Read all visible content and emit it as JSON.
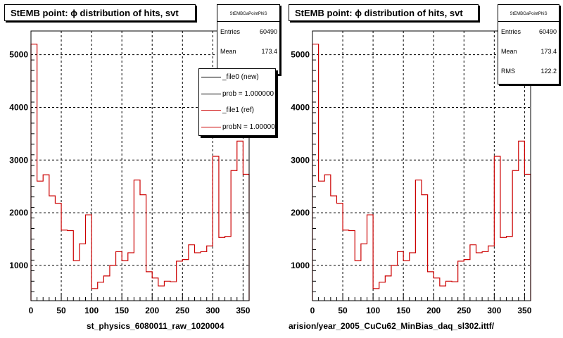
{
  "colors": {
    "ref_hist": "#cc0000",
    "new_hist": "#000000",
    "grid": "#000000"
  },
  "panels": [
    {
      "title": "StEMB point:  ϕ distribution of hits, svt",
      "stats": {
        "name": "StEMBGaPointPhiS",
        "rows": [
          {
            "label": "Entries",
            "value": "60490"
          },
          {
            "label": "Mean",
            "value": "173.4"
          }
        ]
      },
      "legend": [
        {
          "label": "_file0 (new)",
          "color": "#000000"
        },
        {
          "label": "prob = 1.000000",
          "color": "#000000"
        },
        {
          "label": "_file1 (ref)",
          "color": "#cc0000"
        },
        {
          "label": "probN = 1.000000",
          "color": "#cc0000"
        }
      ],
      "bottom_label": "st_physics_6080011_raw_1020004"
    },
    {
      "title": "StEMB point:  ϕ distribution of hits, svt",
      "stats": {
        "name": "StEMBGaPointPhiS",
        "rows": [
          {
            "label": "Entries",
            "value": "60490"
          },
          {
            "label": "Mean",
            "value": "173.4"
          },
          {
            "label": "RMS",
            "value": "122.2"
          }
        ]
      },
      "bottom_label": "arision/year_2005_CuCu62_MinBias_daq_sl302.ittf/"
    }
  ],
  "chart_data": [
    {
      "type": "histogram",
      "title": "StEMB point:  ϕ distribution of hits, svt",
      "xlim": [
        0,
        360
      ],
      "ylim": [
        330,
        5450
      ],
      "bin_width": 10,
      "xticks": [
        0,
        50,
        100,
        150,
        200,
        250,
        300,
        350
      ],
      "yticks": [
        1000,
        2000,
        3000,
        4000,
        5000
      ],
      "grid": true,
      "series": [
        {
          "name": "_file1 (ref)",
          "values": [
            5200,
            2600,
            2720,
            2320,
            2180,
            1670,
            1660,
            1090,
            1410,
            1960,
            560,
            680,
            800,
            1000,
            1260,
            1090,
            1240,
            2620,
            2340,
            880,
            760,
            610,
            700,
            690,
            1080,
            1110,
            1390,
            1240,
            1260,
            1370,
            3070,
            1530,
            1550,
            2800,
            3360,
            2730
          ]
        }
      ]
    },
    {
      "type": "histogram",
      "title": "StEMB point:  ϕ distribution of hits, svt",
      "xlim": [
        0,
        360
      ],
      "ylim": [
        330,
        5450
      ],
      "bin_width": 10,
      "xticks": [
        0,
        50,
        100,
        150,
        200,
        250,
        300,
        350
      ],
      "yticks": [
        1000,
        2000,
        3000,
        4000,
        5000
      ],
      "grid": true,
      "series": [
        {
          "name": "_file1 (ref)",
          "values": [
            5200,
            2600,
            2720,
            2320,
            2180,
            1670,
            1660,
            1090,
            1410,
            1960,
            560,
            680,
            800,
            1000,
            1260,
            1090,
            1240,
            2620,
            2340,
            880,
            760,
            610,
            700,
            690,
            1080,
            1110,
            1390,
            1240,
            1260,
            1370,
            3070,
            1530,
            1550,
            2800,
            3360,
            2730
          ]
        }
      ]
    }
  ]
}
